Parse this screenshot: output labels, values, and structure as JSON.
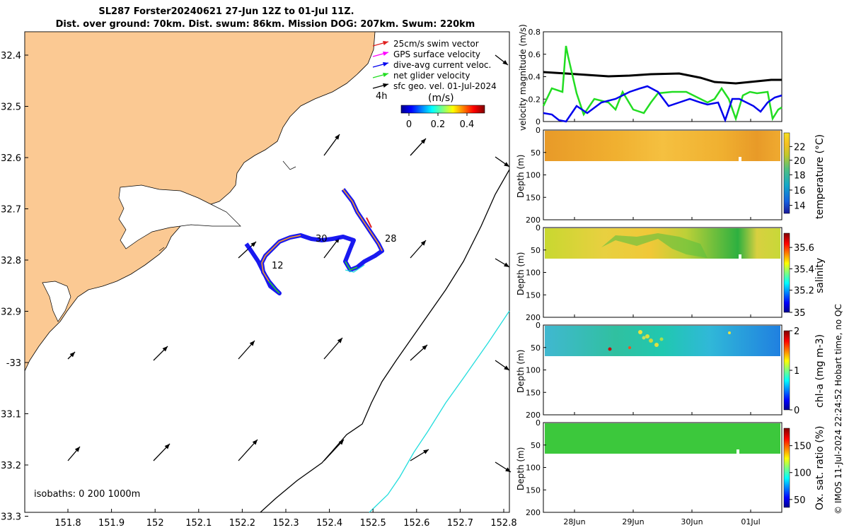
{
  "title": {
    "line1": "SL287 Forster20240621 27-Jun 12Z to 01-Jul 11Z.",
    "line2": "Dist. over ground: 70km. Dist. swum: 86km. Mission DOG: 207km. Swum: 220km"
  },
  "map": {
    "colors": {
      "land": "#FBC993",
      "glider_track": "#0000EE",
      "isobath_200": "#000000",
      "isobath_1000": "#22DDDD"
    },
    "lat_ticks": [
      "32.4",
      "32.5",
      "32.6",
      "32.7",
      "32.8",
      "32.9",
      "-33",
      "33.1",
      "33.2",
      "33.3"
    ],
    "lon_ticks": [
      "151.8",
      "151.9",
      "152",
      "152.1",
      "152.2",
      "152.3",
      "152.4",
      "152.5",
      "152.6",
      "152.7",
      "152.8"
    ],
    "legend": [
      {
        "label": "25cm/s swim vector",
        "color": "#E02020"
      },
      {
        "label": "GPS surface velocity",
        "color": "#FF00FF"
      },
      {
        "label": "dive-avg current veloc.",
        "color": "#0000EE"
      },
      {
        "label": "net glider velocity",
        "color": "#22DD22"
      },
      {
        "label": "sfc geo. vel. 01-Jul-2024",
        "color": "#000000"
      }
    ],
    "legend_extra": "4h",
    "colorbar_title": "(m/s)",
    "colorbar_ticks": [
      "0",
      "0.2",
      "0.4"
    ],
    "track_labels": [
      "28",
      "30",
      "12"
    ],
    "isobath_label": "isobaths: 0   200  1000m"
  },
  "panels": {
    "velocity": {
      "ylabel": "velocity magnitude (m/s)",
      "yticks": [
        "0",
        "0.2",
        "0.4",
        "0.6",
        "0.8"
      ]
    },
    "temperature": {
      "ylabel": "Depth (m)",
      "cblabel": "temperature (°C)",
      "cbticks": [
        "14",
        "16",
        "18",
        "20",
        "22"
      ]
    },
    "salinity": {
      "ylabel": "Depth (m)",
      "cblabel": "salinity",
      "cbticks": [
        "35",
        "35.2",
        "35.4",
        "35.6"
      ]
    },
    "chla": {
      "ylabel": "Depth (m)",
      "cblabel": "chl-a (mg m-3)",
      "cbticks": [
        "0",
        "1",
        "2"
      ]
    },
    "oxygen": {
      "ylabel": "Depth (m)",
      "cblabel": "Ox. sat. ratio (%)",
      "cbticks": [
        "50",
        "100",
        "150"
      ]
    },
    "depth_ticks": [
      "0",
      "50",
      "100",
      "150",
      "200"
    ],
    "time_ticks": [
      "28Jun",
      "29Jun",
      "30Jun",
      "01Jul"
    ]
  },
  "copyright": "© IMOS 11-Jul-2024 22:24:52 Hobart time, no QC"
}
